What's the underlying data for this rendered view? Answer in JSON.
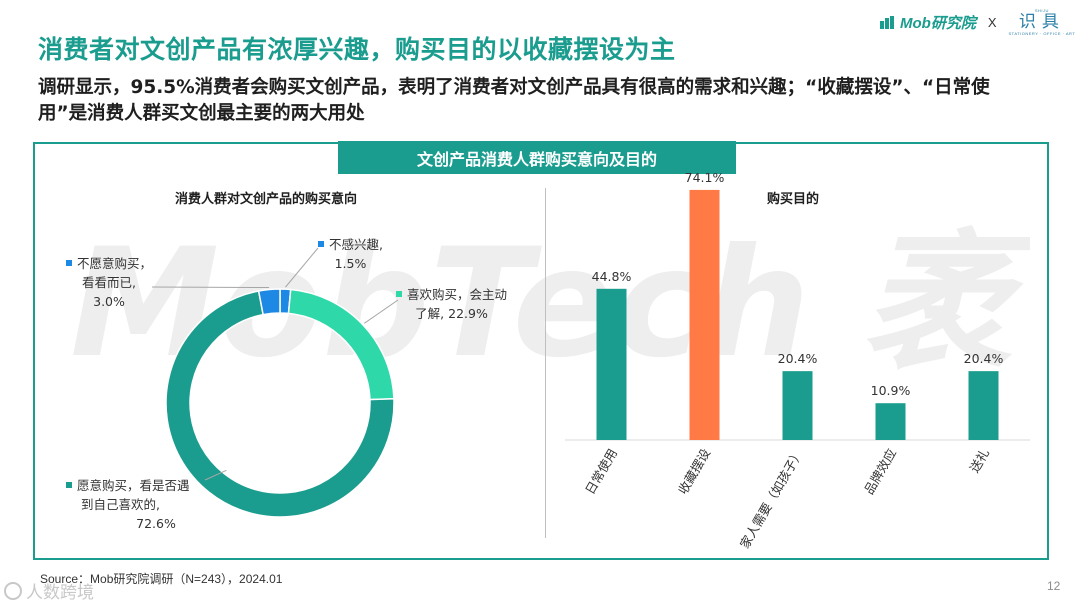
{
  "header": {
    "logo_text": "Mob研究院",
    "separator": "X",
    "partner_name": "识具",
    "partner_top": "SHIJU",
    "partner_sub": "STATIONERY · OFFICE · ART"
  },
  "title": "消费者对文创产品有浓厚兴趣，购买目的以收藏摆设为主",
  "subtitle": "调研显示，95.5%消费者会购买文创产品，表明了消费者对文创产品具有很高的需求和兴趣；“收藏摆设”、“日常使用”是消费人群买文创最主要的两大用处",
  "panel_title": "文创产品消费人群购买意向及目的",
  "watermark_text": "MobTech 袤博",
  "colors": {
    "primary": "#1a9c8e",
    "light_teal": "#2ed8a8",
    "blue": "#1e88e5",
    "orange": "#ff7a45"
  },
  "source": "Source：Mob研究院调研（N=243），2024.01",
  "page_number": "12",
  "footer_watermark": "人数跨境",
  "chart_data": [
    {
      "type": "pie",
      "title": "消费人群对文创产品的购买意向",
      "slices": [
        {
          "label_lines": [
            "愿意购买，看是否遇",
            "到自己喜欢的,",
            "72.6%"
          ],
          "value": 72.6,
          "color": "#1a9c8e"
        },
        {
          "label_lines": [
            "不愿意购买，",
            "看看而已,",
            "3.0%"
          ],
          "value": 3.0,
          "color": "#1e88e5"
        },
        {
          "label_lines": [
            "不感兴趣,",
            "1.5%"
          ],
          "value": 1.5,
          "color": "#1e88e5"
        },
        {
          "label_lines": [
            "喜欢购买，会主动",
            "了解, 22.9%"
          ],
          "value": 22.9,
          "color": "#2ed8a8"
        }
      ]
    },
    {
      "type": "bar",
      "title": "购买目的",
      "categories": [
        "日常使用",
        "收藏摆设",
        "家人需要（如孩子）",
        "品牌效应",
        "送礼"
      ],
      "values": [
        44.8,
        74.1,
        20.4,
        10.9,
        20.4
      ],
      "value_labels": [
        "44.8%",
        "74.1%",
        "20.4%",
        "10.9%",
        "20.4%"
      ],
      "colors": [
        "#1a9c8e",
        "#ff7a45",
        "#1a9c8e",
        "#1a9c8e",
        "#1a9c8e"
      ],
      "ylim": [
        0,
        80
      ]
    }
  ]
}
